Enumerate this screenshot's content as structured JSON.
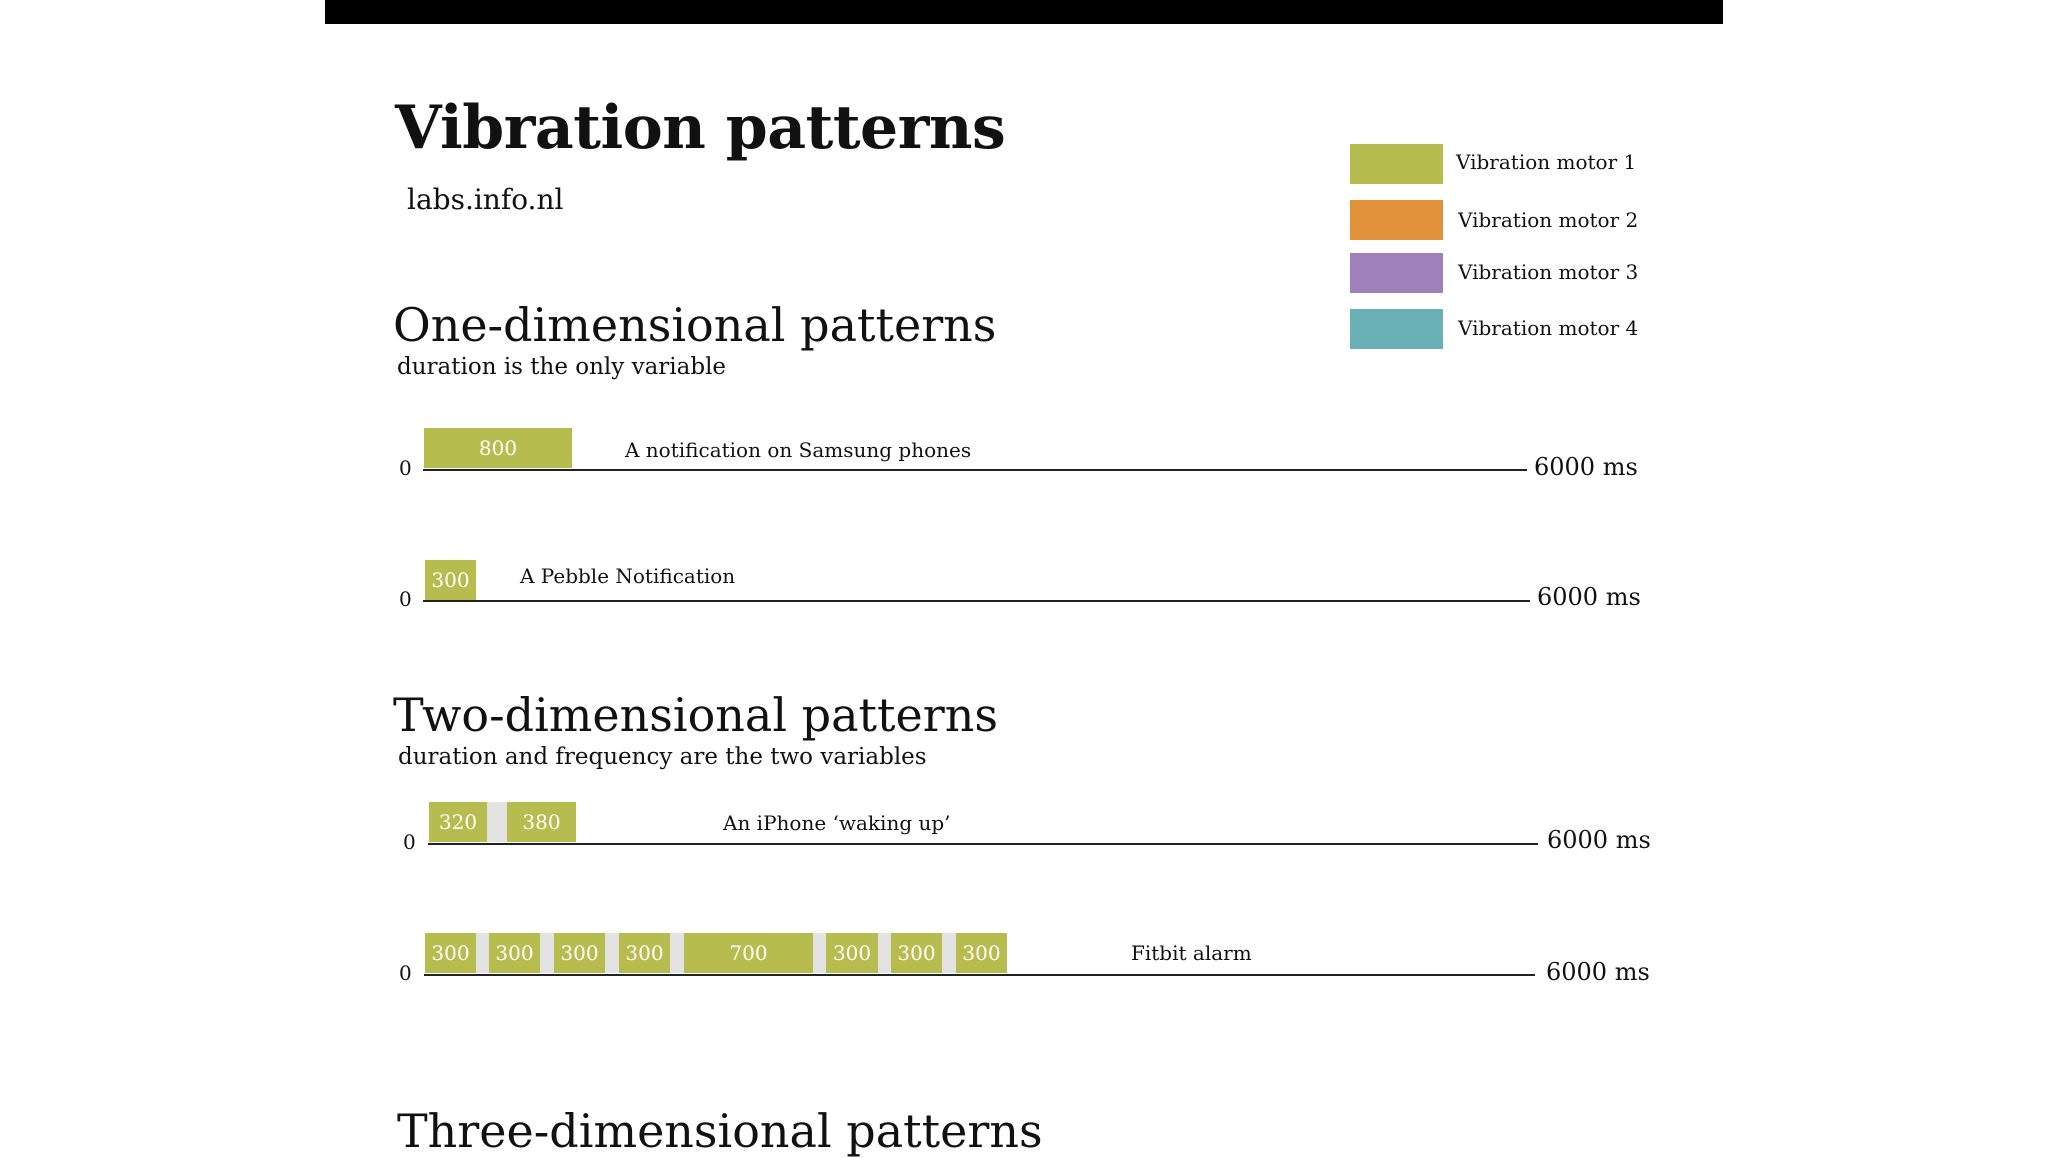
{
  "title": "Vibration patterns",
  "site": "labs.info.nl",
  "colors": {
    "motor1": "#b7bc4f",
    "motor2": "#e0913a",
    "motor3": "#9f80ba",
    "motor4": "#69b1b6"
  },
  "legend": [
    {
      "label": "Vibration motor 1",
      "color": "#b7bc4f"
    },
    {
      "label": "Vibration motor 2",
      "color": "#e0913a"
    },
    {
      "label": "Vibration motor 3",
      "color": "#9f80ba"
    },
    {
      "label": "Vibration motor 4",
      "color": "#69b1b6"
    }
  ],
  "sections": {
    "one": {
      "title": "One-dimensional patterns",
      "subtitle": "duration is the only variable"
    },
    "two": {
      "title": "Two-dimensional patterns",
      "subtitle": "duration and frequency are the two variables"
    },
    "three": {
      "title": "Three-dimensional patterns"
    }
  },
  "timelines": [
    {
      "start_label": "0",
      "end_label": "6000 ms",
      "caption": "A notification on Samsung phones",
      "pulses": [
        "800"
      ]
    },
    {
      "start_label": "0",
      "end_label": "6000 ms",
      "caption": "A Pebble Notification",
      "pulses": [
        "300"
      ]
    },
    {
      "start_label": "0",
      "end_label": "6000 ms",
      "caption": "An iPhone ‘waking up’",
      "pulses": [
        "320",
        "380"
      ]
    },
    {
      "start_label": "0",
      "end_label": "6000 ms",
      "caption": "Fitbit alarm",
      "pulses": [
        "300",
        "300",
        "300",
        "300",
        "700",
        "300",
        "300",
        "300"
      ]
    }
  ]
}
